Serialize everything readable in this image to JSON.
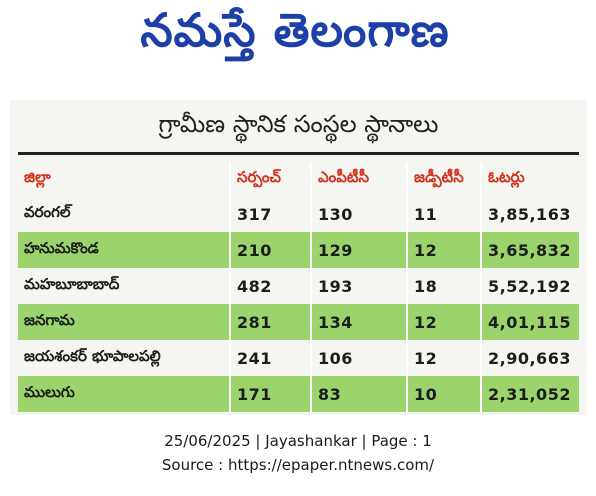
{
  "masthead": {
    "title": "నమస్తే తెలంగాణ",
    "color": "#1c3fa8"
  },
  "clipping": {
    "title": "గ్రామీణ స్థానిక సంస్థల స్థానాలు",
    "columns": [
      "జిల్లా",
      "సర్పంచ్",
      "ఎంపీటీసీ",
      "జడ్పీటీసీ",
      "ఓటర్లు"
    ],
    "rows": [
      {
        "district": "వరంగల్",
        "sarpanch": "317",
        "mptc": "130",
        "zptc": "11",
        "voters": "3,85,163",
        "shade": "white"
      },
      {
        "district": "హనుమకొండ",
        "sarpanch": "210",
        "mptc": "129",
        "zptc": "12",
        "voters": "3,65,832",
        "shade": "green"
      },
      {
        "district": "మహబూబాబాద్",
        "sarpanch": "482",
        "mptc": "193",
        "zptc": "18",
        "voters": "5,52,192",
        "shade": "white"
      },
      {
        "district": "జనగామ",
        "sarpanch": "281",
        "mptc": "134",
        "zptc": "12",
        "voters": "4,01,115",
        "shade": "green"
      },
      {
        "district": "జయశంకర్ భూపాలపల్లి",
        "sarpanch": "241",
        "mptc": "106",
        "zptc": "12",
        "voters": "2,90,663",
        "shade": "white"
      },
      {
        "district": "ములుగు",
        "sarpanch": "171",
        "mptc": "83",
        "zptc": "10",
        "voters": "2,31,052",
        "shade": "green"
      }
    ],
    "header_color": "#d2311e",
    "green_row_color": "#9bd46d"
  },
  "footer": {
    "line1": "25/06/2025 | Jayashankar | Page : 1",
    "line2": "Source : https://epaper.ntnews.com/"
  }
}
